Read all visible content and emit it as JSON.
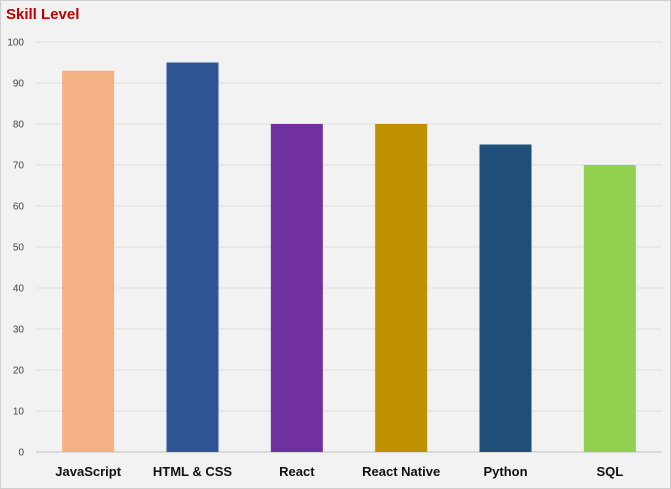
{
  "chart_data": {
    "type": "bar",
    "title": "Skill Level",
    "xlabel": "",
    "ylabel": "",
    "categories": [
      "JavaScript",
      "HTML & CSS",
      "React",
      "React Native",
      "Python",
      "SQL"
    ],
    "values": [
      93,
      95,
      80,
      80,
      75,
      70
    ],
    "colors": [
      "#f4b183",
      "#2f5597",
      "#7030a0",
      "#bf9000",
      "#1f4e79",
      "#92d050"
    ],
    "ylim": [
      0,
      100
    ],
    "yticks": [
      "0",
      "10",
      "20",
      "30",
      "40",
      "50",
      "60",
      "70",
      "80",
      "90",
      "100"
    ],
    "grid": true,
    "legend": "none"
  }
}
